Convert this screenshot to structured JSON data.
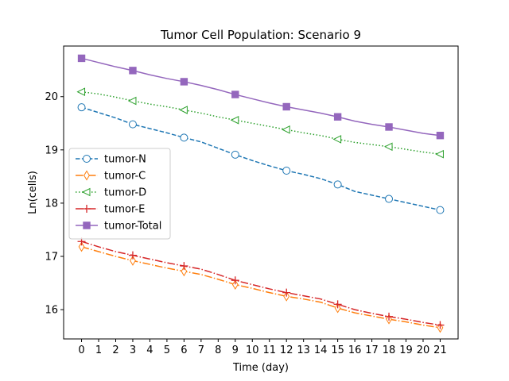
{
  "chart_data": {
    "type": "line",
    "title": "Tumor Cell Population: Scenario 9",
    "xlabel": "Time (day)",
    "ylabel": "Ln(cells)",
    "xlim": [
      -1.05,
      22.05
    ],
    "ylim": [
      15.45,
      20.95
    ],
    "xticks": [
      "0",
      "1",
      "2",
      "3",
      "4",
      "5",
      "6",
      "7",
      "8",
      "9",
      "10",
      "11",
      "12",
      "13",
      "14",
      "15",
      "16",
      "17",
      "18",
      "19",
      "20",
      "21"
    ],
    "yticks": [
      "16",
      "17",
      "18",
      "19",
      "20"
    ],
    "legend_position": "center-left",
    "grid": false,
    "x": [
      0,
      1,
      2,
      3,
      4,
      5,
      6,
      7,
      8,
      9,
      10,
      11,
      12,
      13,
      14,
      15,
      16,
      17,
      18,
      19,
      20,
      21
    ],
    "markers_every": 3,
    "series": [
      {
        "name": "tumor-N",
        "color": "#1f77b4",
        "dash": "dashed",
        "marker": "circle",
        "values": [
          19.8,
          19.7,
          19.6,
          19.48,
          19.4,
          19.32,
          19.23,
          19.15,
          19.03,
          18.91,
          18.8,
          18.7,
          18.61,
          18.54,
          18.46,
          18.35,
          18.22,
          18.15,
          18.08,
          18.01,
          17.94,
          17.87
        ]
      },
      {
        "name": "tumor-C",
        "color": "#ff7f0e",
        "dash": "dashdot",
        "marker": "thin_diamond",
        "values": [
          17.18,
          17.09,
          17.0,
          16.92,
          16.85,
          16.78,
          16.72,
          16.66,
          16.57,
          16.47,
          16.4,
          16.32,
          16.25,
          16.2,
          16.14,
          16.03,
          15.94,
          15.88,
          15.82,
          15.77,
          15.71,
          15.66
        ]
      },
      {
        "name": "tumor-D",
        "color": "#2ca02c",
        "dash": "dotted",
        "marker": "triangle-left",
        "values": [
          20.09,
          20.05,
          19.99,
          19.92,
          19.86,
          19.81,
          19.75,
          19.69,
          19.62,
          19.56,
          19.5,
          19.44,
          19.38,
          19.32,
          19.27,
          19.2,
          19.14,
          19.1,
          19.06,
          19.01,
          18.96,
          18.92
        ]
      },
      {
        "name": "tumor-E",
        "color": "#d62728",
        "dash": "dashdot",
        "marker": "plus",
        "values": [
          17.28,
          17.18,
          17.09,
          17.02,
          16.95,
          16.88,
          16.82,
          16.76,
          16.66,
          16.55,
          16.47,
          16.39,
          16.32,
          16.26,
          16.2,
          16.1,
          16.0,
          15.93,
          15.87,
          15.82,
          15.76,
          15.71
        ]
      },
      {
        "name": "tumor-Total",
        "color": "#9467bd",
        "dash": "solid",
        "marker": "square",
        "values": [
          20.72,
          20.64,
          20.56,
          20.49,
          20.41,
          20.34,
          20.28,
          20.21,
          20.13,
          20.04,
          19.96,
          19.88,
          19.81,
          19.75,
          19.69,
          19.62,
          19.54,
          19.48,
          19.43,
          19.37,
          19.31,
          19.27
        ]
      }
    ]
  }
}
